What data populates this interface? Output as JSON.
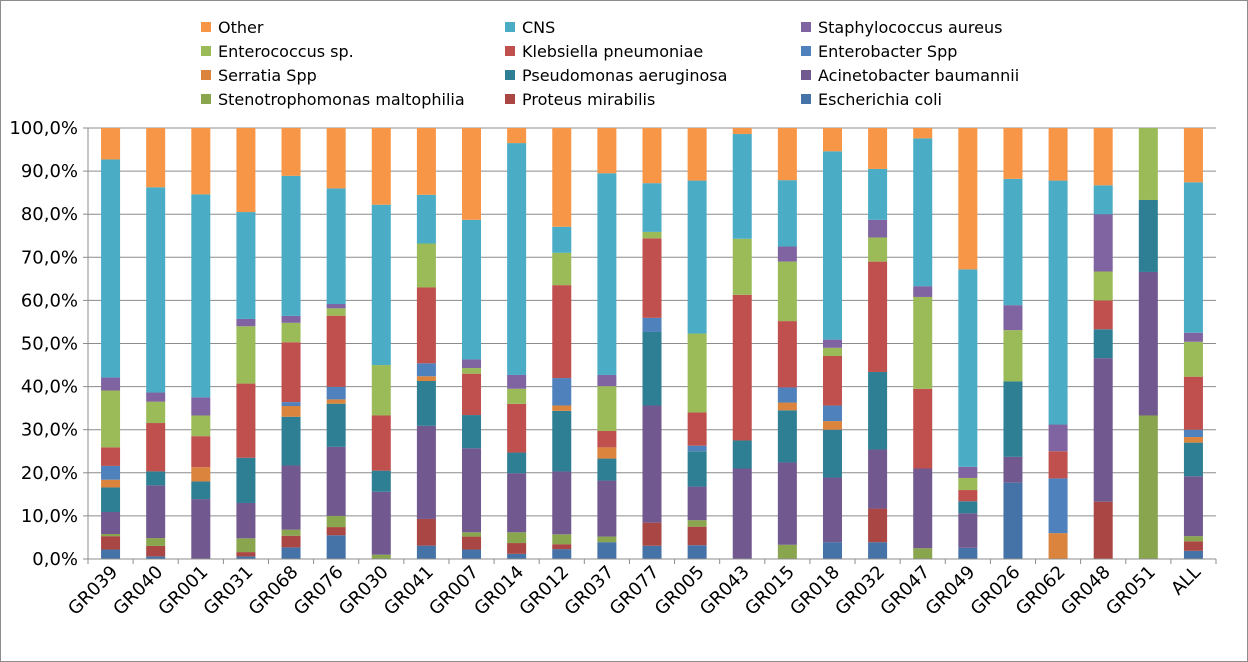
{
  "chart_data": {
    "type": "bar",
    "stacked": true,
    "normalized": true,
    "categories": [
      "GR039",
      "GR040",
      "GR001",
      "GR031",
      "GR068",
      "GR076",
      "GR030",
      "GR041",
      "GR007",
      "GR014",
      "GR012",
      "GR037",
      "GR077",
      "GR005",
      "GR043",
      "GR015",
      "GR018",
      "GR032",
      "GR047",
      "GR049",
      "GR026",
      "GR062",
      "GR048",
      "GR051",
      "ALL"
    ],
    "y_ticks": [
      "0,0%",
      "10,0%",
      "20,0%",
      "30,0%",
      "40,0%",
      "50,0%",
      "60,0%",
      "70,0%",
      "80,0%",
      "90,0%",
      "100,0%"
    ],
    "ylim": [
      0,
      100
    ],
    "grid": true,
    "legend_position": "top",
    "series": [
      {
        "name": "Escherichia coli",
        "color": "#4572A7",
        "values": [
          2.2,
          0.6,
          0,
          0.6,
          2.7,
          5.5,
          0,
          3.1,
          2.2,
          1.2,
          2.2,
          3.9,
          3.1,
          3.2,
          0,
          0,
          3.9,
          3.9,
          0,
          2.6,
          17.7,
          0,
          0,
          0,
          1.9
        ]
      },
      {
        "name": "Proteus mirabilis",
        "color": "#AA4643",
        "values": [
          3.1,
          2.4,
          0,
          1.0,
          2.7,
          1.9,
          0,
          6.2,
          3.0,
          2.5,
          1.1,
          0,
          5.4,
          4.3,
          0,
          0,
          0,
          7.8,
          0,
          0,
          0,
          0,
          13.3,
          0,
          2.2
        ]
      },
      {
        "name": "Stenotrophomonas maltophilia",
        "color": "#89A54E",
        "values": [
          0.5,
          1.8,
          0,
          3.2,
          1.4,
          2.6,
          1.0,
          0,
          1.0,
          2.5,
          2.2,
          1.3,
          0,
          1.5,
          0,
          3.3,
          0,
          0,
          2.5,
          0,
          0,
          0,
          0,
          33.3,
          1.2
        ]
      },
      {
        "name": "Acinetobacter baumannii",
        "color": "#71588F",
        "values": [
          5.1,
          12.1,
          13.9,
          8.2,
          14.9,
          16.0,
          14.6,
          21.6,
          19.5,
          13.7,
          14.0,
          13.0,
          27.4,
          7.8,
          21.0,
          19.1,
          15.0,
          13.7,
          18.5,
          8.0,
          6.0,
          0,
          33.3,
          33.3,
          13.9
        ]
      },
      {
        "name": "Pseudomonas aeruginosa",
        "color": "#2E7F93",
        "values": [
          5.7,
          3.2,
          4.1,
          10.5,
          11.3,
          10.0,
          4.9,
          10.4,
          7.7,
          4.8,
          13.5,
          5.1,
          17.2,
          8.2,
          6.5,
          12.1,
          11.1,
          18.0,
          0,
          2.8,
          17.5,
          0,
          6.7,
          16.7,
          7.8
        ]
      },
      {
        "name": "Serratia Spp",
        "color": "#DB843D",
        "values": [
          1.8,
          0,
          3.3,
          0,
          2.5,
          1.0,
          0,
          1.1,
          0,
          0,
          1.2,
          2.6,
          0,
          0,
          0,
          1.8,
          2.0,
          0,
          0,
          0,
          0,
          6.0,
          0,
          0,
          1.3
        ]
      },
      {
        "name": "Enterobacter Spp",
        "color": "#4F81BD",
        "values": [
          3.2,
          0,
          0,
          0,
          0.9,
          2.9,
          0,
          3.0,
          0,
          0,
          6.1,
          0,
          3.3,
          1.3,
          0,
          3.5,
          3.6,
          0,
          0,
          0,
          0,
          12.7,
          0,
          0,
          1.7
        ]
      },
      {
        "name": "Klebsiella pneumoniae",
        "color": "#C0504D",
        "values": [
          4.3,
          11.1,
          7.2,
          17.2,
          13.9,
          16.5,
          12.8,
          17.6,
          9.6,
          11.3,
          20.7,
          3.8,
          18.6,
          7.7,
          33.8,
          15.4,
          11.5,
          25.6,
          18.5,
          2.6,
          0,
          6.3,
          6.7,
          0,
          12.3
        ]
      },
      {
        "name": "Enterococcus sp.",
        "color": "#9BBB59",
        "values": [
          13.2,
          4.9,
          4.8,
          13.3,
          4.5,
          1.7,
          11.7,
          10.2,
          1.3,
          3.5,
          7.2,
          10.4,
          1.5,
          18.3,
          13.0,
          13.8,
          1.9,
          5.6,
          21.3,
          2.8,
          11.9,
          0,
          6.7,
          16.7,
          8.1
        ]
      },
      {
        "name": "Staphylococcus aureus",
        "color": "#8064A2",
        "values": [
          3.0,
          2.1,
          4.2,
          1.7,
          1.6,
          1.0,
          0,
          0,
          2.0,
          3.2,
          0,
          2.6,
          0,
          0,
          0,
          3.5,
          1.9,
          4.1,
          2.5,
          2.6,
          5.8,
          6.2,
          13.3,
          0,
          2.1
        ]
      },
      {
        "name": "CNS",
        "color": "#4BACC6",
        "values": [
          50.6,
          47.1,
          47.1,
          24.8,
          32.5,
          26.8,
          37.2,
          11.3,
          32.4,
          53.8,
          5.8,
          46.8,
          11.4,
          35.5,
          24.3,
          15.4,
          43.7,
          11.8,
          34.3,
          45.8,
          29.3,
          56.6,
          6.7,
          0,
          34.9
        ]
      },
      {
        "name": "Other",
        "color": "#F79646",
        "values": [
          7.3,
          13.6,
          15.4,
          19.5,
          11.1,
          14.0,
          17.8,
          15.5,
          21.3,
          3.5,
          22.0,
          10.5,
          12.9,
          12.2,
          1.4,
          12.1,
          5.4,
          9.5,
          2.4,
          32.8,
          11.8,
          12.2,
          13.3,
          0,
          12.6
        ]
      }
    ],
    "legend_order": [
      "Other",
      "CNS",
      "Staphylococcus aureus",
      "Enterococcus sp.",
      "Klebsiella pneumoniae",
      "Enterobacter Spp",
      "Serratia Spp",
      "Pseudomonas aeruginosa",
      "Acinetobacter baumannii",
      "Stenotrophomonas maltophilia",
      "Proteus mirabilis",
      "Escherichia coli"
    ]
  }
}
